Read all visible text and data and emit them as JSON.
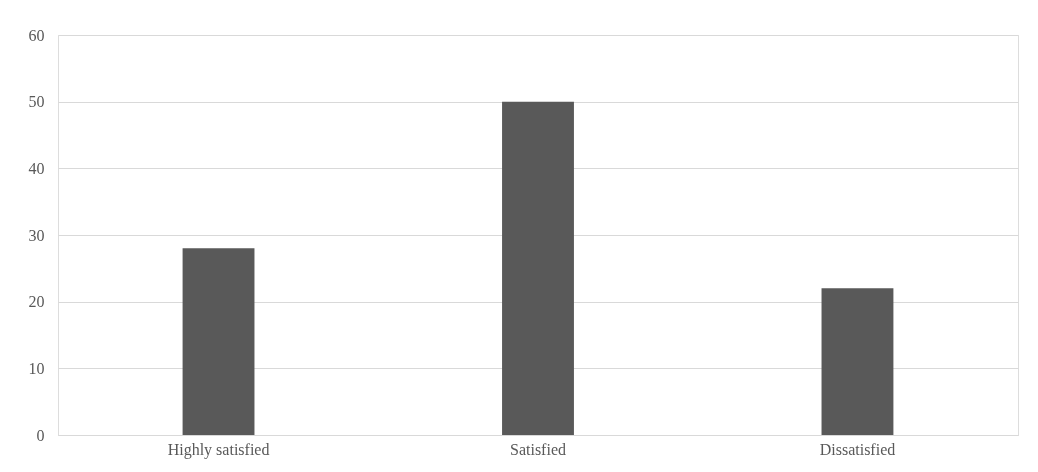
{
  "chart_data": {
    "type": "bar",
    "categories": [
      "Highly satisfied",
      "Satisfied",
      "Dissatisfied"
    ],
    "values": [
      28,
      50,
      22
    ],
    "color": "#595959",
    "ylim": [
      0,
      60
    ],
    "yticks": [
      0,
      10,
      20,
      30,
      40,
      50,
      60
    ],
    "grid": "y"
  }
}
